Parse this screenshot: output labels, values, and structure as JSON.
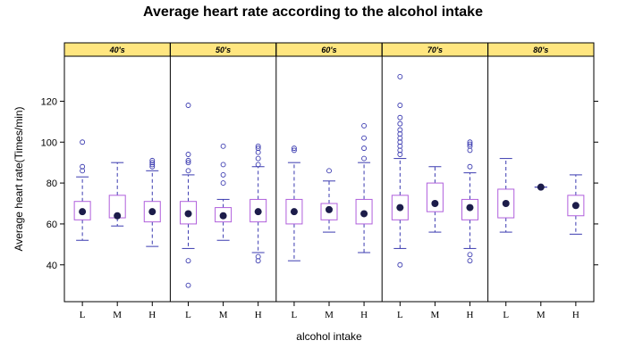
{
  "chart_data": {
    "type": "box",
    "title": "Average heart rate according to the alcohol intake",
    "xlabel": "alcohol intake",
    "ylabel": "Average heart rate(Times/min)",
    "ylim": [
      22,
      142
    ],
    "yticks": [
      40,
      60,
      80,
      100,
      120
    ],
    "categories": [
      "L",
      "M",
      "H"
    ],
    "colors": {
      "strip": "#ffe680",
      "box": "#b05fdc",
      "whisker": "#3b3bb0",
      "median": "#1c1c4a",
      "outlier": "#3b3bb0"
    },
    "panels": [
      {
        "label": "40's",
        "boxes": [
          {
            "cat": "L",
            "min": 52,
            "q1": 62,
            "median": 66,
            "q3": 71,
            "max": 83,
            "outliers": [
              86,
              88,
              100
            ]
          },
          {
            "cat": "M",
            "min": 59,
            "q1": 63,
            "median": 64,
            "q3": 74,
            "max": 90,
            "outliers": []
          },
          {
            "cat": "H",
            "min": 49,
            "q1": 61,
            "median": 66,
            "q3": 71,
            "max": 86,
            "outliers": [
              88,
              89,
              90,
              91
            ]
          }
        ]
      },
      {
        "label": "50's",
        "boxes": [
          {
            "cat": "L",
            "min": 48,
            "q1": 60,
            "median": 65,
            "q3": 71,
            "max": 84,
            "outliers": [
              30,
              42,
              86,
              90,
              91,
              94,
              118
            ]
          },
          {
            "cat": "M",
            "min": 52,
            "q1": 61,
            "median": 64,
            "q3": 68,
            "max": 72,
            "outliers": [
              80,
              84,
              89,
              98
            ]
          },
          {
            "cat": "H",
            "min": 46,
            "q1": 61,
            "median": 66,
            "q3": 72,
            "max": 88,
            "outliers": [
              42,
              44,
              89,
              92,
              95,
              97,
              98
            ]
          }
        ]
      },
      {
        "label": "60's",
        "boxes": [
          {
            "cat": "L",
            "min": 42,
            "q1": 60,
            "median": 66,
            "q3": 72,
            "max": 90,
            "outliers": [
              96,
              97
            ]
          },
          {
            "cat": "M",
            "min": 56,
            "q1": 62,
            "median": 67,
            "q3": 70,
            "max": 81,
            "outliers": [
              86
            ]
          },
          {
            "cat": "H",
            "min": 46,
            "q1": 60,
            "median": 65,
            "q3": 72,
            "max": 90,
            "outliers": [
              92,
              97,
              102,
              108
            ]
          }
        ]
      },
      {
        "label": "70's",
        "boxes": [
          {
            "cat": "L",
            "min": 48,
            "q1": 62,
            "median": 68,
            "q3": 74,
            "max": 92,
            "outliers": [
              40,
              94,
              96,
              98,
              100,
              102,
              104,
              106,
              109,
              112,
              118,
              132
            ]
          },
          {
            "cat": "M",
            "min": 56,
            "q1": 66,
            "median": 70,
            "q3": 80,
            "max": 88,
            "outliers": []
          },
          {
            "cat": "H",
            "min": 48,
            "q1": 62,
            "median": 68,
            "q3": 72,
            "max": 85,
            "outliers": [
              42,
              45,
              88,
              96,
              98,
              99,
              100
            ]
          }
        ]
      },
      {
        "label": "80's",
        "boxes": [
          {
            "cat": "L",
            "min": 56,
            "q1": 63,
            "median": 70,
            "q3": 77,
            "max": 92,
            "outliers": []
          },
          {
            "cat": "M",
            "min": 78,
            "q1": 78,
            "median": 78,
            "q3": 78,
            "max": 78,
            "outliers": []
          },
          {
            "cat": "H",
            "min": 55,
            "q1": 64,
            "median": 69,
            "q3": 74,
            "max": 84,
            "outliers": []
          }
        ]
      }
    ]
  }
}
